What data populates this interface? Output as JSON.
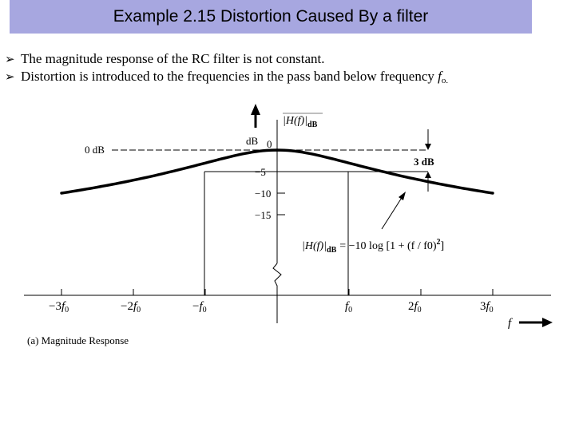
{
  "slide": {
    "title": "Example 2.15 Distortion Caused By a filter",
    "bullets": [
      "The magnitude response of the RC filter is not constant.",
      "Distortion is introduced to the frequencies in the pass band below frequency"
    ],
    "bullet_tail_f": "f",
    "bullet_tail_sub": "o.",
    "bullet_icon": "arrow-bullet-icon"
  },
  "figure": {
    "caption": "(a) Magnitude Response",
    "yaxis_title_main": "|H(f)|",
    "yaxis_title_sub": "dB",
    "ylabel_unit": "dB",
    "zero_db_label": "0 dB",
    "three_db_label": "3 dB",
    "y_ticks": [
      "0",
      "−5",
      "−10",
      "−15"
    ],
    "x_axis_var": "f",
    "x_ticks": [
      {
        "coef": "−3",
        "sym": "f",
        "sub": "0"
      },
      {
        "coef": "−2",
        "sym": "f",
        "sub": "0"
      },
      {
        "coef": "−",
        "sym": "f",
        "sub": "0"
      },
      {
        "coef": "",
        "sym": "f",
        "sub": "0"
      },
      {
        "coef": "2",
        "sym": "f",
        "sub": "0"
      },
      {
        "coef": "3",
        "sym": "f",
        "sub": "0"
      }
    ],
    "equation": {
      "lhs_main": "|H(f)|",
      "lhs_sub": "dB",
      "rhs": "= −10 log [1 + (f / f0)",
      "rhs_sup": "2",
      "rhs_close": "]"
    }
  },
  "chart_data": {
    "type": "line",
    "title": "",
    "xlabel": "f",
    "ylabel": "|H(f)| dB",
    "x_units": "f0",
    "x": [
      -3,
      -2.5,
      -2,
      -1.5,
      -1,
      -0.5,
      0,
      0.5,
      1,
      1.5,
      2,
      2.5,
      3
    ],
    "series": [
      {
        "values": [
          -10,
          -8.6,
          -7.0,
          -5.1,
          -3.0,
          -1.0,
          0,
          -1.0,
          -3.0,
          -5.1,
          -7.0,
          -8.6,
          -10
        ]
      }
    ],
    "xlim": [
      -3.5,
      4
    ],
    "ylim": [
      -17,
      1
    ],
    "y_ticks": [
      0,
      -5,
      -10,
      -15
    ],
    "annotations": [
      "0 dB",
      "3 dB"
    ]
  }
}
